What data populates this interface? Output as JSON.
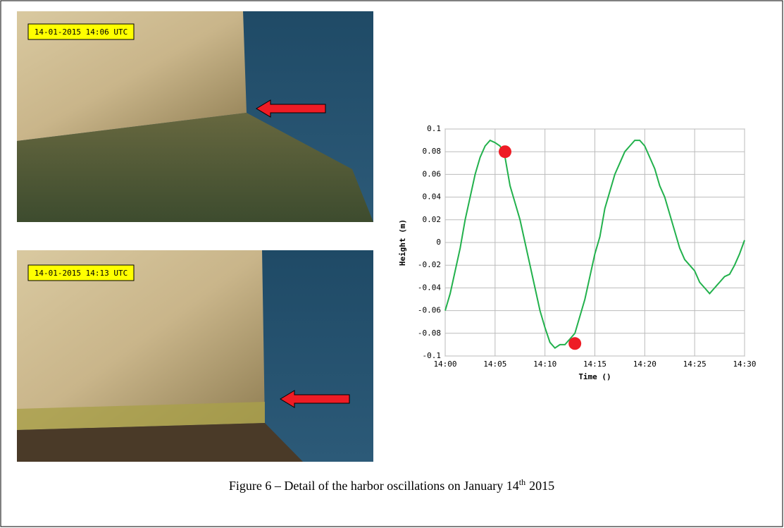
{
  "photos": [
    {
      "label": "14-01-2015 14:06 UTC"
    },
    {
      "label": "14-01-2015 14:13 UTC"
    }
  ],
  "caption": {
    "text": "Figure 6 – Detail of the harbor oscillations on January 14",
    "sup": "th",
    "year": "2015"
  },
  "chart_data": {
    "type": "line",
    "x_label": "Time ()",
    "y_label": "Height (m)",
    "x": [
      0,
      0.5,
      1,
      1.5,
      2,
      2.5,
      3,
      3.5,
      4,
      4.5,
      5,
      5.5,
      6,
      6.5,
      7,
      7.5,
      8,
      8.5,
      9,
      9.5,
      10,
      10.5,
      11,
      11.5,
      12,
      12.5,
      13,
      13.5,
      14,
      14.5,
      15,
      15.5,
      16,
      16.5,
      17,
      17.5,
      18,
      18.5,
      19,
      19.5,
      20,
      20.5,
      21,
      21.5,
      22,
      22.5,
      23,
      23.5,
      24,
      24.5,
      25,
      25.5,
      26,
      26.5,
      27,
      27.5,
      28,
      28.5,
      29,
      29.5,
      30
    ],
    "series": [
      {
        "color": "#22b14c",
        "values": [
          -0.06,
          -0.045,
          -0.025,
          -0.005,
          0.02,
          0.04,
          0.06,
          0.075,
          0.085,
          0.09,
          0.088,
          0.085,
          0.075,
          0.05,
          0.035,
          0.02,
          0.0,
          -0.02,
          -0.04,
          -0.06,
          -0.075,
          -0.088,
          -0.093,
          -0.09,
          -0.09,
          -0.085,
          -0.08,
          -0.065,
          -0.05,
          -0.03,
          -0.01,
          0.005,
          0.03,
          0.045,
          0.06,
          0.07,
          0.08,
          0.085,
          0.09,
          0.09,
          0.085,
          0.075,
          0.065,
          0.05,
          0.04,
          0.025,
          0.01,
          -0.005,
          -0.015,
          -0.02,
          -0.025,
          -0.035,
          -0.04,
          -0.045,
          -0.04,
          -0.035,
          -0.03,
          -0.028,
          -0.02,
          -0.01,
          0.002
        ]
      }
    ],
    "markers": {
      "color": "#ee1c25",
      "x": [
        6,
        13
      ],
      "values": [
        0.08,
        -0.089
      ]
    },
    "xlim": [
      0,
      30
    ],
    "xticks": [
      {
        "value": 0,
        "label": "14:00"
      },
      {
        "value": 5,
        "label": "14:05"
      },
      {
        "value": 10,
        "label": "14:10"
      },
      {
        "value": 15,
        "label": "14:15"
      },
      {
        "value": 20,
        "label": "14:20"
      },
      {
        "value": 25,
        "label": "14:25"
      },
      {
        "value": 30,
        "label": "14:30"
      }
    ],
    "ylim": [
      -0.1,
      0.1
    ],
    "yticks": [
      -0.1,
      -0.08,
      -0.06,
      -0.04,
      -0.02,
      0,
      0.02,
      0.04,
      0.06,
      0.08,
      0.1
    ],
    "grid": true
  }
}
